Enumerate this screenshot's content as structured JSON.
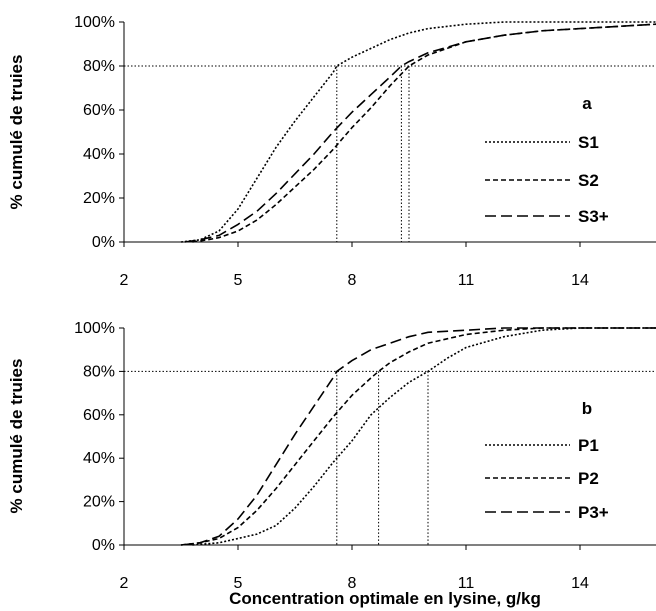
{
  "chart_data": [
    {
      "type": "line",
      "panel": "a",
      "ylabel": "% cumulé de truies",
      "xlabel": "",
      "xlim": [
        2,
        16
      ],
      "ylim": [
        0,
        1
      ],
      "xticks": [
        "2",
        "5",
        "8",
        "11",
        "14"
      ],
      "yticks": [
        "0%",
        "20%",
        "40%",
        "60%",
        "80%",
        "100%"
      ],
      "legend_position": "right",
      "reference_y": 0.8,
      "series": [
        {
          "name": "S1",
          "dash": "dot",
          "x": [
            3.5,
            4.0,
            4.5,
            5.0,
            5.5,
            6.0,
            6.5,
            7.0,
            7.5,
            7.6,
            8.0,
            8.5,
            9.0,
            9.5,
            10.0,
            11.0,
            12.0,
            13.0,
            16.0
          ],
          "y": [
            0.0,
            0.01,
            0.05,
            0.15,
            0.29,
            0.43,
            0.55,
            0.66,
            0.77,
            0.8,
            0.84,
            0.88,
            0.92,
            0.95,
            0.97,
            0.99,
            1.0,
            1.0,
            1.0
          ],
          "cross_x": 7.6
        },
        {
          "name": "S2",
          "dash": "dash",
          "x": [
            3.8,
            4.2,
            4.5,
            5.0,
            5.5,
            6.0,
            6.5,
            7.0,
            7.5,
            8.0,
            8.5,
            9.0,
            9.5,
            10.0,
            11.0,
            12.0,
            13.0,
            14.0,
            15.0,
            16.0
          ],
          "y": [
            0.0,
            0.01,
            0.02,
            0.05,
            0.1,
            0.17,
            0.25,
            0.33,
            0.42,
            0.52,
            0.61,
            0.71,
            0.8,
            0.85,
            0.91,
            0.94,
            0.96,
            0.97,
            0.98,
            0.99
          ],
          "cross_x": 9.5
        },
        {
          "name": "S3+",
          "dash": "longdash",
          "x": [
            3.6,
            4.0,
            4.5,
            5.0,
            5.5,
            6.0,
            6.5,
            7.0,
            7.5,
            8.0,
            8.5,
            9.0,
            9.3,
            9.5,
            10.0,
            11.0,
            12.0,
            13.0,
            14.0,
            15.0,
            16.0
          ],
          "y": [
            0.0,
            0.01,
            0.03,
            0.08,
            0.14,
            0.22,
            0.31,
            0.4,
            0.5,
            0.59,
            0.67,
            0.75,
            0.8,
            0.82,
            0.86,
            0.91,
            0.94,
            0.96,
            0.97,
            0.98,
            0.99
          ],
          "cross_x": 9.3
        }
      ]
    },
    {
      "type": "line",
      "panel": "b",
      "ylabel": "% cumulé de truies",
      "xlabel": "Concentration  optimale en lysine, g/kg",
      "xlim": [
        2,
        16
      ],
      "ylim": [
        0,
        1
      ],
      "xticks": [
        "2",
        "5",
        "8",
        "11",
        "14"
      ],
      "yticks": [
        "0%",
        "20%",
        "40%",
        "60%",
        "80%",
        "100%"
      ],
      "legend_position": "right",
      "reference_y": 0.8,
      "series": [
        {
          "name": "P1",
          "dash": "dot",
          "x": [
            3.8,
            4.5,
            5.0,
            5.5,
            6.0,
            6.5,
            7.0,
            7.5,
            8.0,
            8.5,
            9.0,
            9.5,
            10.0,
            10.5,
            11.0,
            12.0,
            13.0,
            14.0,
            16.0
          ],
          "y": [
            0.0,
            0.01,
            0.03,
            0.05,
            0.09,
            0.17,
            0.27,
            0.38,
            0.48,
            0.6,
            0.68,
            0.75,
            0.8,
            0.86,
            0.91,
            0.96,
            0.99,
            1.0,
            1.0
          ],
          "cross_x": 10.0
        },
        {
          "name": "P2",
          "dash": "dash",
          "x": [
            3.5,
            4.0,
            4.5,
            5.0,
            5.5,
            6.0,
            6.5,
            7.0,
            7.5,
            8.0,
            8.5,
            8.7,
            9.0,
            9.5,
            10.0,
            11.0,
            12.0,
            13.0,
            16.0
          ],
          "y": [
            0.0,
            0.01,
            0.03,
            0.08,
            0.16,
            0.26,
            0.37,
            0.48,
            0.59,
            0.69,
            0.77,
            0.8,
            0.84,
            0.89,
            0.93,
            0.97,
            0.99,
            1.0,
            1.0
          ],
          "cross_x": 8.7
        },
        {
          "name": "P3+",
          "dash": "longdash",
          "x": [
            3.5,
            4.0,
            4.5,
            5.0,
            5.5,
            6.0,
            6.5,
            7.0,
            7.5,
            7.6,
            8.0,
            8.5,
            9.0,
            9.5,
            10.0,
            11.0,
            12.0,
            16.0
          ],
          "y": [
            0.0,
            0.01,
            0.04,
            0.12,
            0.23,
            0.37,
            0.51,
            0.64,
            0.77,
            0.8,
            0.85,
            0.9,
            0.93,
            0.96,
            0.98,
            0.99,
            1.0,
            1.0
          ],
          "cross_x": 7.6
        }
      ]
    }
  ]
}
